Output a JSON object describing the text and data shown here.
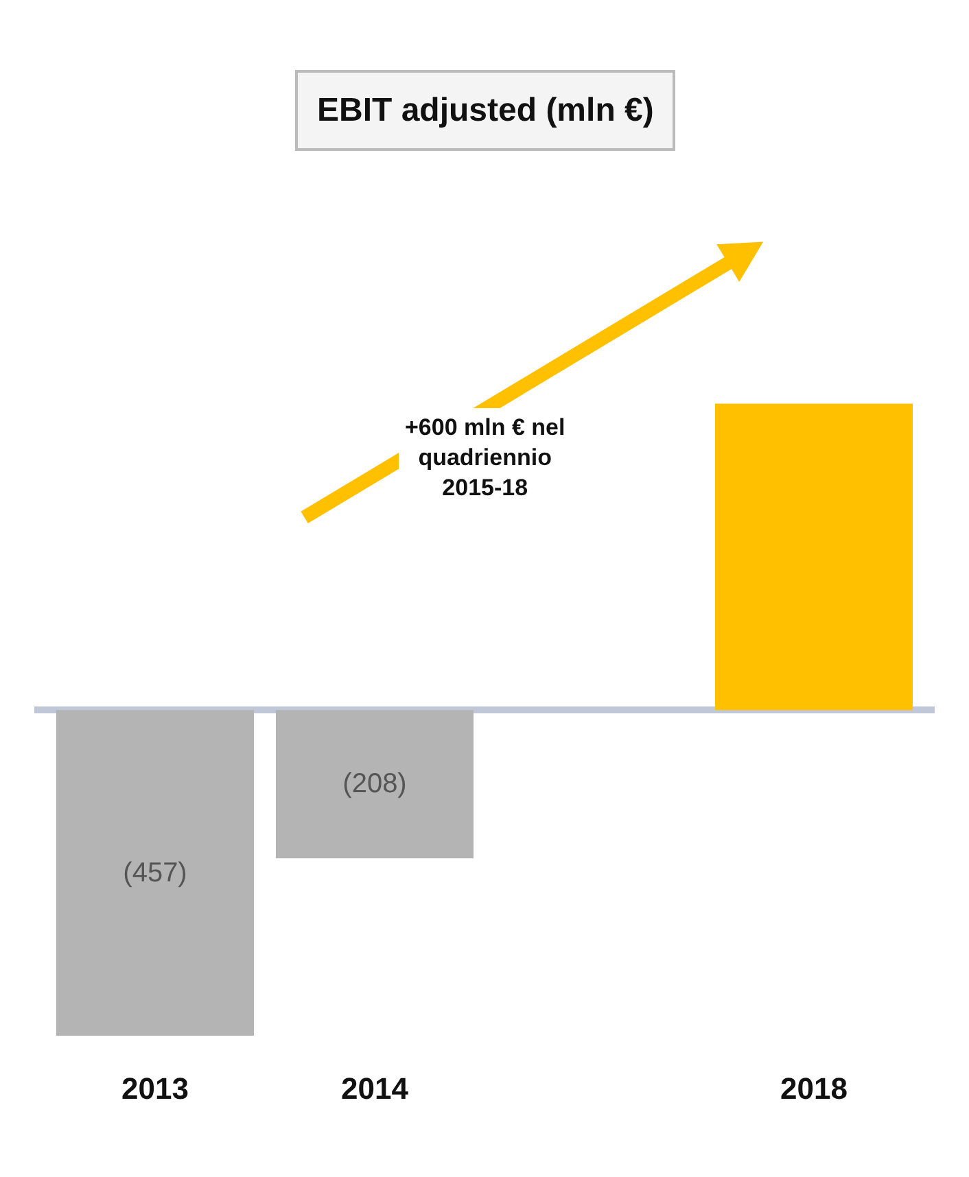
{
  "chart_data": {
    "type": "bar",
    "title": "EBIT adjusted (mln €)",
    "categories": [
      "2013",
      "2014",
      null,
      "2018"
    ],
    "values": [
      -457,
      -208,
      null,
      430
    ],
    "colors": [
      "#b4b4b4",
      "#b4b4b4",
      "#b4b4b4",
      "#ffc000"
    ],
    "value_labels": [
      "(457)",
      "(208)",
      null,
      null
    ],
    "tick_labels": "x",
    "legend": false,
    "annotations": [
      "+600 mln € nel quadriennio 2015-18"
    ]
  }
}
